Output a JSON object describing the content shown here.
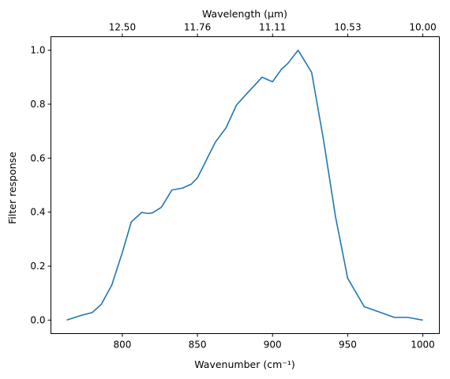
{
  "chart_data": {
    "type": "line",
    "xlabel": "Wavenumber (cm⁻¹)",
    "ylabel": "Filter response",
    "top_xlabel": "Wavelength (μm)",
    "xlim": [
      752.5,
      1011.0
    ],
    "ylim": [
      -0.05,
      1.05
    ],
    "x_ticks": [
      800,
      850,
      900,
      950,
      1000
    ],
    "y_ticks": [
      0.0,
      0.2,
      0.4,
      0.6,
      0.8,
      1.0
    ],
    "y_tick_labels": [
      "0.0",
      "0.2",
      "0.4",
      "0.6",
      "0.8",
      "1.0"
    ],
    "top_ticks": [
      {
        "label": "12.50",
        "wavenumber": 800
      },
      {
        "label": "11.76",
        "wavenumber": 850
      },
      {
        "label": "11.11",
        "wavenumber": 900
      },
      {
        "label": "10.53",
        "wavenumber": 950
      },
      {
        "label": "10.00",
        "wavenumber": 1000
      }
    ],
    "grid": false,
    "line_color": "#1f77b4",
    "series": [
      {
        "x": [
          763,
          773,
          780,
          786,
          793,
          800,
          806,
          813,
          817,
          820,
          826,
          833,
          840,
          846,
          850,
          853,
          857,
          862,
          869,
          876,
          883,
          893,
          900,
          906,
          910,
          917,
          926,
          934,
          942,
          950,
          961,
          971,
          981,
          990,
          1000
        ],
        "y": [
          0.0,
          0.018,
          0.028,
          0.058,
          0.13,
          0.25,
          0.364,
          0.399,
          0.395,
          0.397,
          0.418,
          0.482,
          0.489,
          0.504,
          0.527,
          0.56,
          0.605,
          0.66,
          0.712,
          0.797,
          0.84,
          0.9,
          0.883,
          0.93,
          0.95,
          1.0,
          0.918,
          0.665,
          0.38,
          0.155,
          0.05,
          0.03,
          0.01,
          0.01,
          0.0
        ]
      }
    ]
  }
}
